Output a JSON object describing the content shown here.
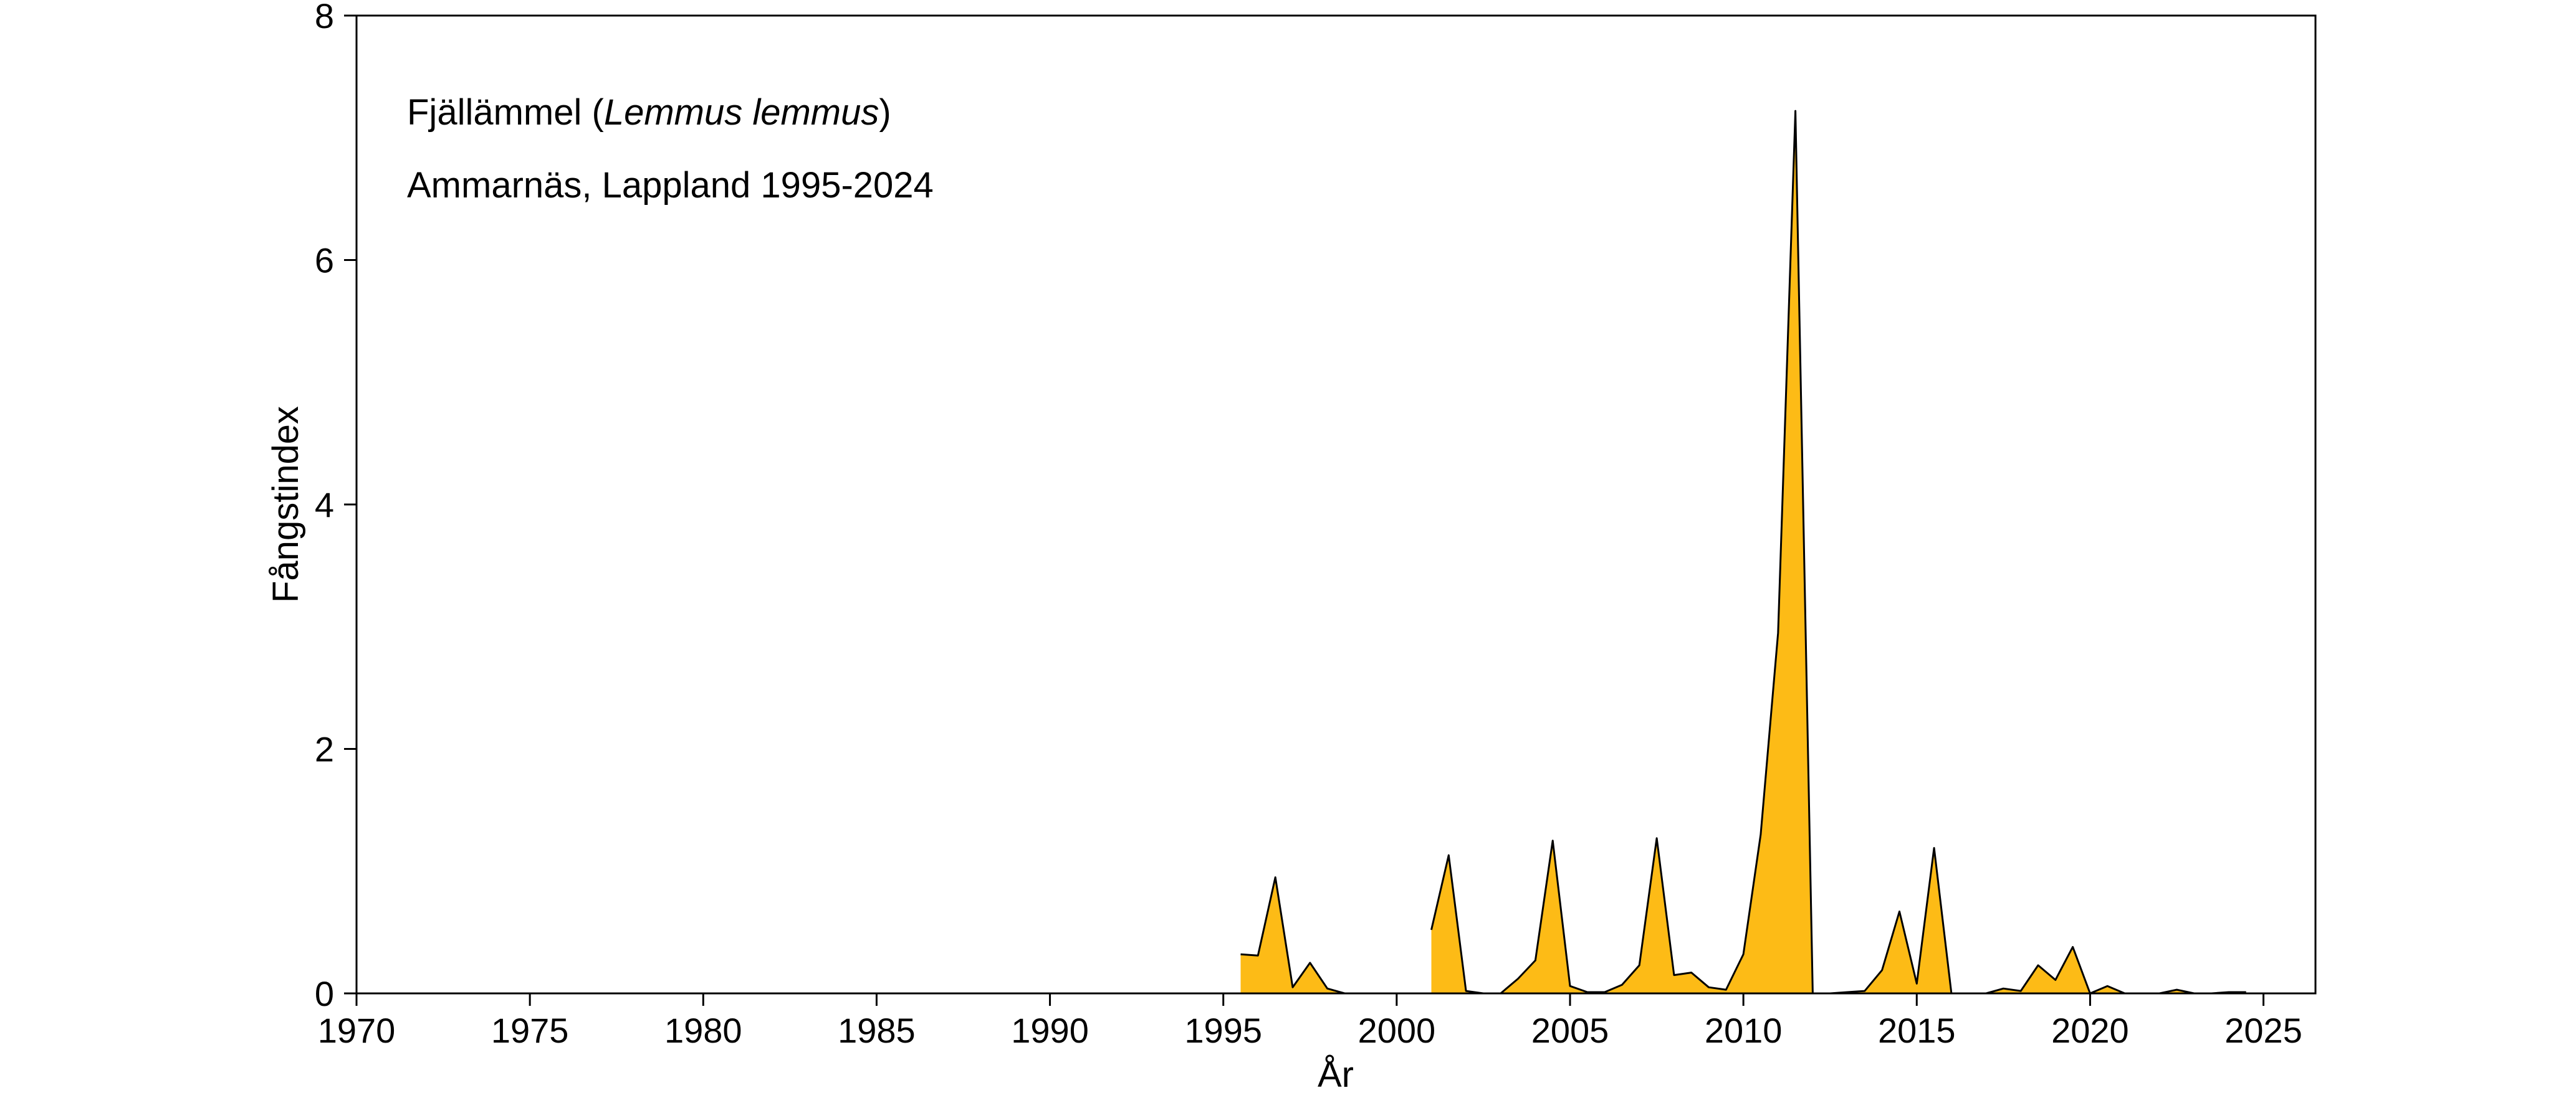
{
  "chart_data": {
    "type": "area",
    "annotations": {
      "species_common": "Fjällämmel (",
      "species_latin": "Lemmus lemmus",
      "species_close": ")",
      "location": "Ammarnäs, Lappland 1995-2024"
    },
    "xlabel": "År",
    "ylabel": "Fångstindex",
    "xlim": [
      1970,
      2026.5
    ],
    "ylim": [
      0,
      8
    ],
    "xticks": [
      1970,
      1975,
      1980,
      1985,
      1990,
      1995,
      2000,
      2005,
      2010,
      2015,
      2020,
      2025
    ],
    "yticks": [
      0,
      2,
      4,
      6,
      8
    ],
    "grid": false,
    "legend": "none",
    "fill_color": "#FDBB16",
    "line_color": "#000000",
    "series": [
      {
        "segments": [
          {
            "x": [
              1995.5,
              1996.0,
              1996.5,
              1997.0,
              1997.5,
              1998.0,
              1998.5,
              1999.0,
              1999.5,
              2000.0,
              2000.5,
              2001.0
            ],
            "y": [
              0.32,
              0.31,
              0.95,
              0.05,
              0.25,
              0.04,
              0.0,
              0.0,
              0.0,
              0.0,
              0.0,
              0.0
            ]
          },
          {
            "x": [
              2001.0,
              2001.5,
              2002.0,
              2002.5,
              2003.0,
              2003.5,
              2004.0,
              2004.5,
              2005.0,
              2005.5,
              2006.0,
              2006.5,
              2007.0,
              2007.5,
              2008.0,
              2008.5,
              2009.0,
              2009.5,
              2010.0,
              2010.5,
              2011.0,
              2011.5,
              2012.0
            ],
            "y": [
              0.52,
              1.13,
              0.02,
              0.0,
              0.0,
              0.12,
              0.27,
              1.25,
              0.06,
              0.01,
              0.01,
              0.07,
              0.23,
              1.27,
              0.15,
              0.17,
              0.05,
              0.03,
              0.32,
              1.3,
              2.95,
              7.22,
              0.0
            ]
          },
          {
            "x": [
              2012.5,
              2013.0,
              2013.5,
              2014.0,
              2014.5,
              2015.0,
              2015.5,
              2016.0
            ],
            "y": [
              0.0,
              0.01,
              0.02,
              0.19,
              0.67,
              0.08,
              1.19,
              0.0
            ]
          },
          {
            "x": [
              2016.5,
              2017.0,
              2017.5,
              2018.0,
              2018.5,
              2019.0,
              2019.5,
              2020.0,
              2020.5,
              2021.0,
              2021.5,
              2022.0,
              2022.5,
              2023.0,
              2023.5,
              2024.0,
              2024.5
            ],
            "y": [
              0.0,
              0.0,
              0.04,
              0.02,
              0.23,
              0.11,
              0.38,
              0.0,
              0.06,
              0.0,
              0.0,
              0.0,
              0.03,
              0.0,
              0.0,
              0.01,
              0.01
            ]
          }
        ]
      }
    ]
  }
}
